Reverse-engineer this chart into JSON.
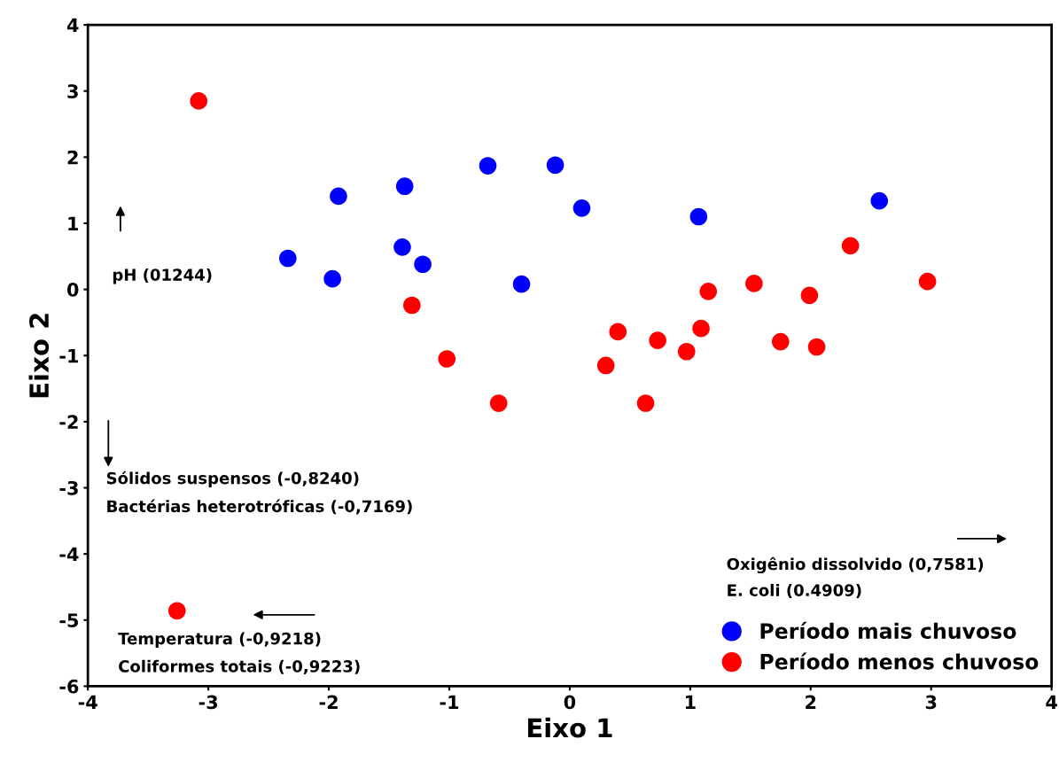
{
  "chart_data": {
    "type": "scatter",
    "xlabel": "Eixo 1",
    "ylabel": "Eixo 2",
    "xlim": [
      -4,
      4
    ],
    "ylim": [
      -6,
      4
    ],
    "xticks": [
      -4,
      -3,
      -2,
      -1,
      0,
      1,
      2,
      3,
      4
    ],
    "yticks": [
      -6,
      -5,
      -4,
      -3,
      -2,
      -1,
      0,
      1,
      2,
      3,
      4
    ],
    "grid": false,
    "legend": "bottom right",
    "marker": "circle",
    "series": [
      {
        "name": "Período mais chuvoso",
        "color": "#0000ff",
        "x": [
          -2.34,
          -1.92,
          -1.97,
          -1.37,
          -1.39,
          -1.22,
          -0.68,
          -0.4,
          -0.12,
          0.1,
          1.07,
          2.57
        ],
        "values": [
          0.47,
          1.41,
          0.16,
          1.56,
          0.64,
          0.38,
          1.87,
          0.08,
          1.88,
          1.23,
          1.1,
          1.34
        ]
      },
      {
        "name": "Período menos chuvoso",
        "color": "#ff0000",
        "x": [
          -3.08,
          -3.26,
          -1.31,
          -1.02,
          -0.59,
          0.3,
          0.4,
          0.73,
          0.63,
          0.97,
          1.09,
          1.15,
          1.53,
          1.75,
          1.99,
          2.05,
          2.33,
          2.97
        ],
        "values": [
          2.85,
          -4.86,
          -0.24,
          -1.05,
          -1.72,
          -1.15,
          -0.64,
          -0.77,
          -1.72,
          -0.94,
          -0.59,
          -0.03,
          0.09,
          -0.79,
          -0.09,
          -0.87,
          0.66,
          0.12
        ]
      }
    ],
    "annotations": [
      "pH (01244)",
      "Sólidos suspensos (-0,8240)",
      "Bactérias heterotróficas (-0,7169)",
      "Oxigênio dissolvido (0,7581)",
      "E. coli (0.4909)",
      "Temperatura (-0,9218)",
      "Coliformes totais (-0,9223)"
    ]
  }
}
